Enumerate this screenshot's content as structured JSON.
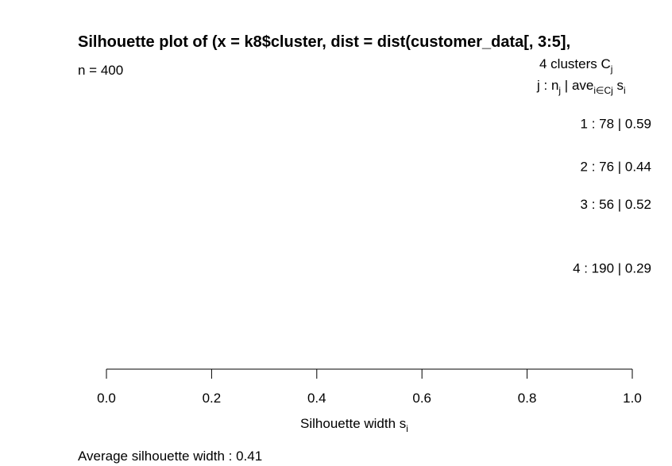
{
  "chart_data": {
    "type": "bar",
    "orientation": "horizontal",
    "title": "Silhouette plot of (x = k8$cluster, dist = dist(customer_data[, 3:5],",
    "n_label": "n = 400",
    "header_line1": {
      "prefix": "4  clusters  C",
      "sub": "j"
    },
    "header_line2": {
      "a": "j :  n",
      "a_sub": "j",
      "b": " | ave",
      "b_sub": "i∈Cj",
      "c": "  s",
      "c_sub": "i"
    },
    "clusters": [
      {
        "label": "1 :   78  |  0.59",
        "cluster": 1,
        "size": 78,
        "avg_width": 0.59
      },
      {
        "label": "2 :   76  |  0.44",
        "cluster": 2,
        "size": 76,
        "avg_width": 0.44
      },
      {
        "label": "3 :   56  |  0.52",
        "cluster": 3,
        "size": 56,
        "avg_width": 0.52
      },
      {
        "label": "4 :   190  |  0.29",
        "cluster": 4,
        "size": 190,
        "avg_width": 0.29
      }
    ],
    "total_n": 400,
    "xlim": [
      0.0,
      1.0
    ],
    "x_ticks": [
      "0.0",
      "0.2",
      "0.4",
      "0.6",
      "0.8",
      "1.0"
    ],
    "xlabel": {
      "main": "Silhouette width s",
      "sub": "i"
    },
    "footer": "Average silhouette width :  0.41",
    "average_width": 0.41,
    "grid": false,
    "bar_color": "#000000"
  }
}
